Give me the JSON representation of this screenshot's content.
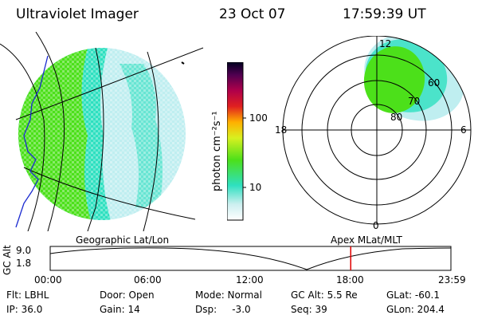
{
  "header": {
    "instrument": "Ultraviolet Imager",
    "date": "23 Oct 07",
    "time": "17:59:39 UT"
  },
  "colorbar": {
    "label": "photon cm⁻²s⁻¹",
    "ticks": [
      "100",
      "10"
    ]
  },
  "polar": {
    "mlt_labels": {
      "top": "12",
      "left": "18",
      "right": "6",
      "bottom": "0"
    },
    "lat_labels": [
      "60",
      "70",
      "80"
    ]
  },
  "timeline": {
    "left_title": "Geographic Lat/Lon",
    "right_title": "Apex MLat/MLT",
    "ylabel": "GC Alt",
    "yticks": [
      "9.0",
      "1.8"
    ],
    "xticks": [
      "00:00",
      "06:00",
      "12:00",
      "18:00",
      "23:59"
    ],
    "marker_time_hours": 18.0
  },
  "info": {
    "flt": "Flt: LBHL",
    "ip": "IP: 36.0",
    "door": "Door: Open",
    "gain": "Gain: 14",
    "mode": "Mode: Normal",
    "dsp": "Dsp:     -3.0",
    "gcalt": "GC Alt: 5.5 Re",
    "seq": "Seq: 39",
    "glat": "GLat: -60.1",
    "glon": "GLon: 204.4"
  },
  "colors": {
    "green": "#4ce01a",
    "teal": "#2ee0c0",
    "lightblue": "#bfeef0",
    "marker": "#e00000"
  }
}
